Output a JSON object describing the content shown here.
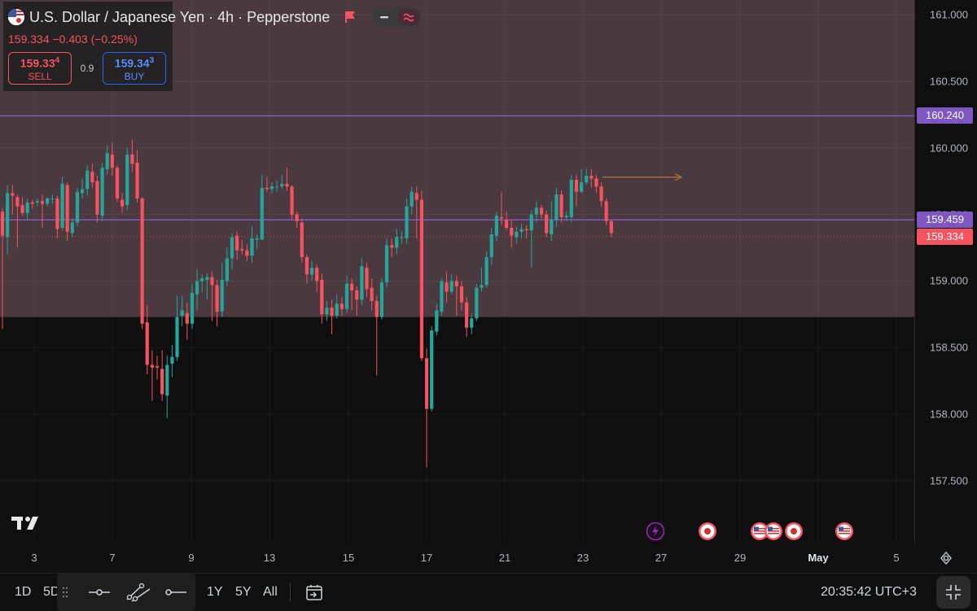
{
  "symbol": {
    "title": "U.S. Dollar / Japanese Yen · 4h · Pepperstone",
    "price_change": "159.334 −0.403 (−0.25%)",
    "sell_price_main": "159.33",
    "sell_price_sup": "4",
    "sell_label": "SELL",
    "spread": "0.9",
    "buy_price_main": "159.34",
    "buy_price_sup": "3",
    "buy_label": "BUY"
  },
  "price_axis": {
    "ticks": [
      "161.000",
      "160.500",
      "160.000",
      "159.500",
      "159.000",
      "158.500",
      "158.000",
      "157.500"
    ],
    "labels": [
      {
        "text": "160.240",
        "color": "#7e57c2"
      },
      {
        "text": "159.459",
        "color": "#7e57c2"
      },
      {
        "text": "159.334",
        "color": "#f7525f"
      }
    ]
  },
  "time_axis": {
    "ticks": [
      {
        "text": "3",
        "bold": false
      },
      {
        "text": "7",
        "bold": false
      },
      {
        "text": "9",
        "bold": false
      },
      {
        "text": "13",
        "bold": false
      },
      {
        "text": "15",
        "bold": false
      },
      {
        "text": "17",
        "bold": false
      },
      {
        "text": "21",
        "bold": false
      },
      {
        "text": "23",
        "bold": false
      },
      {
        "text": "27",
        "bold": false
      },
      {
        "text": "29",
        "bold": false
      },
      {
        "text": "May",
        "bold": true
      },
      {
        "text": "5",
        "bold": false
      }
    ]
  },
  "chart_data": {
    "type": "candlestick",
    "symbol": "USDJPY",
    "interval": "4h",
    "ylim": [
      157.3,
      161.1
    ],
    "horizontal_lines": [
      160.24,
      159.459
    ],
    "last_price": 159.334,
    "zone": {
      "top": 161.1,
      "bottom": 158.73,
      "color": "#4a3a40"
    },
    "colors": {
      "up": "#26a69a",
      "down": "#f7525f"
    },
    "candles": [
      [
        159.52,
        159.34,
        159.55,
        158.64
      ],
      [
        159.33,
        159.66,
        159.72,
        159.2
      ],
      [
        159.66,
        159.64,
        159.72,
        159.5
      ],
      [
        159.63,
        159.56,
        159.65,
        159.25
      ],
      [
        159.57,
        159.51,
        159.63,
        159.49
      ],
      [
        159.51,
        159.59,
        159.62,
        159.46
      ],
      [
        159.59,
        159.58,
        159.61,
        159.54
      ],
      [
        159.59,
        159.6,
        159.62,
        159.56
      ],
      [
        159.6,
        159.58,
        159.65,
        159.4
      ],
      [
        159.58,
        159.62,
        159.63,
        159.56
      ],
      [
        159.62,
        159.62,
        159.65,
        159.58
      ],
      [
        159.62,
        159.39,
        159.64,
        159.32
      ],
      [
        159.4,
        159.73,
        159.78,
        159.38
      ],
      [
        159.72,
        159.37,
        159.74,
        159.3
      ],
      [
        159.36,
        159.44,
        159.47,
        159.33
      ],
      [
        159.44,
        159.67,
        159.7,
        159.41
      ],
      [
        159.66,
        159.69,
        159.77,
        159.62
      ],
      [
        159.69,
        159.83,
        159.87,
        159.64
      ],
      [
        159.82,
        159.74,
        159.88,
        159.7
      ],
      [
        159.75,
        159.5,
        159.79,
        159.44
      ],
      [
        159.49,
        159.85,
        159.89,
        159.45
      ],
      [
        159.84,
        159.96,
        160.02,
        159.8
      ],
      [
        159.95,
        159.85,
        160.04,
        159.79
      ],
      [
        159.85,
        159.62,
        159.87,
        159.59
      ],
      [
        159.61,
        159.56,
        159.66,
        159.51
      ],
      [
        159.57,
        159.95,
        160.0,
        159.53
      ],
      [
        159.95,
        159.88,
        160.06,
        159.82
      ],
      [
        159.89,
        159.62,
        159.98,
        159.59
      ],
      [
        159.62,
        158.68,
        159.63,
        158.64
      ],
      [
        158.69,
        158.37,
        158.82,
        158.3
      ],
      [
        158.37,
        158.35,
        158.48,
        158.1
      ],
      [
        158.36,
        158.35,
        158.44,
        158.26
      ],
      [
        158.34,
        158.15,
        158.48,
        158.1
      ],
      [
        158.14,
        158.37,
        158.44,
        157.97
      ],
      [
        158.38,
        158.43,
        158.52,
        158.28
      ],
      [
        158.43,
        158.73,
        158.89,
        158.4
      ],
      [
        158.74,
        158.78,
        158.89,
        158.66
      ],
      [
        158.76,
        158.68,
        158.84,
        158.56
      ],
      [
        158.68,
        158.91,
        158.98,
        158.64
      ],
      [
        158.9,
        159.0,
        159.09,
        158.78
      ],
      [
        159.0,
        159.02,
        159.05,
        158.92
      ],
      [
        159.01,
        159.03,
        159.06,
        158.86
      ],
      [
        159.03,
        158.97,
        159.07,
        158.7
      ],
      [
        158.97,
        158.77,
        159.01,
        158.66
      ],
      [
        158.77,
        159.01,
        159.14,
        158.73
      ],
      [
        159.0,
        159.17,
        159.25,
        158.96
      ],
      [
        159.17,
        159.33,
        159.36,
        159.09
      ],
      [
        159.34,
        159.23,
        159.37,
        159.16
      ],
      [
        159.24,
        159.23,
        159.31,
        159.2
      ],
      [
        159.23,
        159.19,
        159.28,
        159.15
      ],
      [
        159.19,
        159.32,
        159.41,
        159.14
      ],
      [
        159.31,
        159.32,
        159.35,
        159.24
      ],
      [
        159.31,
        159.7,
        159.8,
        159.65
      ],
      [
        159.7,
        159.69,
        159.78,
        159.67
      ],
      [
        159.69,
        159.71,
        159.74,
        159.66
      ],
      [
        159.71,
        159.71,
        159.75,
        159.67
      ],
      [
        159.71,
        159.73,
        159.8,
        159.69
      ],
      [
        159.73,
        159.71,
        159.85,
        159.68
      ],
      [
        159.71,
        159.5,
        159.72,
        159.46
      ],
      [
        159.5,
        159.45,
        159.52,
        159.4
      ],
      [
        159.44,
        159.18,
        159.47,
        159.14
      ],
      [
        159.18,
        159.05,
        159.2,
        158.98
      ],
      [
        159.05,
        159.1,
        159.15,
        159.0
      ],
      [
        159.1,
        159.0,
        159.12,
        158.92
      ],
      [
        159.01,
        158.75,
        159.06,
        158.68
      ],
      [
        158.75,
        158.8,
        158.85,
        158.7
      ],
      [
        158.8,
        158.74,
        158.86,
        158.6
      ],
      [
        158.74,
        158.83,
        158.9,
        158.72
      ],
      [
        158.83,
        158.79,
        158.88,
        158.74
      ],
      [
        158.79,
        158.98,
        159.04,
        158.76
      ],
      [
        158.98,
        158.93,
        159.02,
        158.78
      ],
      [
        158.93,
        158.86,
        158.96,
        158.74
      ],
      [
        158.86,
        159.11,
        159.17,
        158.82
      ],
      [
        159.1,
        158.94,
        159.14,
        158.88
      ],
      [
        158.95,
        158.85,
        159.02,
        158.78
      ],
      [
        158.85,
        158.73,
        158.89,
        158.29
      ],
      [
        158.73,
        158.99,
        159.02,
        158.71
      ],
      [
        158.99,
        159.27,
        159.32,
        158.95
      ],
      [
        159.27,
        159.25,
        159.32,
        159.18
      ],
      [
        159.25,
        159.33,
        159.39,
        159.2
      ],
      [
        159.33,
        159.33,
        159.37,
        159.28
      ],
      [
        159.32,
        159.56,
        159.62,
        159.28
      ],
      [
        159.56,
        159.67,
        159.71,
        159.5
      ],
      [
        159.66,
        159.61,
        159.71,
        159.32
      ],
      [
        159.61,
        158.42,
        159.68,
        158.4
      ],
      [
        158.42,
        158.04,
        158.49,
        157.6
      ],
      [
        158.04,
        158.63,
        158.66,
        158.02
      ],
      [
        158.62,
        158.78,
        158.83,
        158.59
      ],
      [
        158.77,
        159.0,
        159.02,
        158.74
      ],
      [
        158.99,
        158.92,
        159.07,
        158.84
      ],
      [
        158.92,
        159.0,
        159.05,
        158.9
      ],
      [
        159.0,
        158.96,
        159.04,
        158.74
      ],
      [
        158.96,
        158.84,
        159.0,
        158.78
      ],
      [
        158.84,
        158.65,
        158.88,
        158.58
      ],
      [
        158.65,
        158.72,
        158.75,
        158.6
      ],
      [
        158.72,
        158.95,
        158.98,
        158.7
      ],
      [
        158.95,
        158.97,
        159.1,
        158.92
      ],
      [
        158.97,
        159.18,
        159.22,
        158.95
      ],
      [
        159.18,
        159.35,
        159.4,
        159.12
      ],
      [
        159.34,
        159.49,
        159.52,
        159.3
      ],
      [
        159.48,
        159.47,
        159.67,
        159.42
      ],
      [
        159.46,
        159.4,
        159.52,
        159.38
      ],
      [
        159.4,
        159.34,
        159.46,
        159.25
      ],
      [
        159.33,
        159.37,
        159.41,
        159.28
      ],
      [
        159.37,
        159.39,
        159.43,
        159.32
      ],
      [
        159.39,
        159.38,
        159.42,
        159.32
      ],
      [
        159.38,
        159.5,
        159.53,
        159.1
      ],
      [
        159.5,
        159.55,
        159.6,
        159.44
      ],
      [
        159.55,
        159.5,
        159.57,
        159.47
      ],
      [
        159.5,
        159.36,
        159.53,
        159.33
      ],
      [
        159.35,
        159.46,
        159.6,
        159.3
      ],
      [
        159.46,
        159.65,
        159.7,
        159.41
      ],
      [
        159.65,
        159.48,
        159.68,
        159.44
      ],
      [
        159.48,
        159.49,
        159.52,
        159.45
      ],
      [
        159.48,
        159.76,
        159.8,
        159.44
      ],
      [
        159.76,
        159.67,
        159.8,
        159.56
      ],
      [
        159.67,
        159.74,
        159.84,
        159.66
      ],
      [
        159.74,
        159.79,
        159.85,
        159.72
      ],
      [
        159.79,
        159.77,
        159.84,
        159.7
      ],
      [
        159.77,
        159.71,
        159.8,
        159.66
      ],
      [
        159.71,
        159.6,
        159.74,
        159.56
      ],
      [
        159.6,
        159.45,
        159.62,
        159.42
      ],
      [
        159.45,
        159.36,
        159.46,
        159.33
      ]
    ]
  },
  "events": [
    {
      "icon": "lightning-icon",
      "color": "#9c27b0"
    },
    {
      "icon": "japan-flag-icon",
      "color": "#ffffff"
    },
    {
      "icon": "us-flag-icon",
      "color": "#ffffff"
    },
    {
      "icon": "us-flag-icon",
      "color": "#ffffff"
    },
    {
      "icon": "japan-flag-icon",
      "color": "#ffffff"
    },
    {
      "icon": "us-flag-icon",
      "color": "#ffffff"
    }
  ],
  "bottom_bar": {
    "range_1d": "1D",
    "range_5d": "5D",
    "range_1y": "1Y",
    "range_5y": "5Y",
    "range_all": "All",
    "clock": "20:35:42 UTC+3"
  }
}
